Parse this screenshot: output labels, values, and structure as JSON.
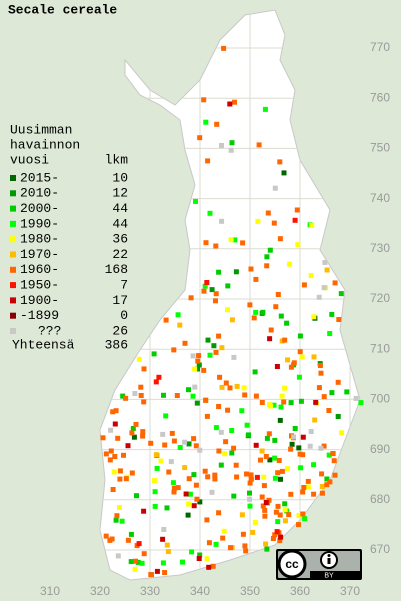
{
  "title": "Secale cereale",
  "legend": {
    "heading": [
      "Uusimman",
      "havainnon",
      "vuosi"
    ],
    "count_header": "lkm",
    "items": [
      {
        "label": "2015-",
        "count": 10,
        "color": "#006600"
      },
      {
        "label": "2010-",
        "count": 12,
        "color": "#009900"
      },
      {
        "label": "2000-",
        "count": 44,
        "color": "#00cc00"
      },
      {
        "label": "1990-",
        "count": 44,
        "color": "#00ff00"
      },
      {
        "label": "1980-",
        "count": 36,
        "color": "#ffff00"
      },
      {
        "label": "1970-",
        "count": 22,
        "color": "#ffbb00"
      },
      {
        "label": "1960-",
        "count": 168,
        "color": "#ff6600"
      },
      {
        "label": "1950-",
        "count": 7,
        "color": "#ff1100"
      },
      {
        "label": "1900-",
        "count": 17,
        "color": "#cc0000"
      },
      {
        "label": "-1899",
        "count": 0,
        "color": "#880000"
      },
      {
        "label": "???",
        "count": 26,
        "color": "#c8c8c8"
      }
    ],
    "total_label": "Yhteensä",
    "total": 386
  },
  "axes": {
    "northing": [
      770,
      760,
      750,
      740,
      730,
      720,
      710,
      700,
      690,
      680,
      670
    ],
    "easting": [
      310,
      320,
      330,
      340,
      350,
      360,
      370
    ]
  },
  "license": {
    "logo": "cc",
    "by": "BY"
  }
}
